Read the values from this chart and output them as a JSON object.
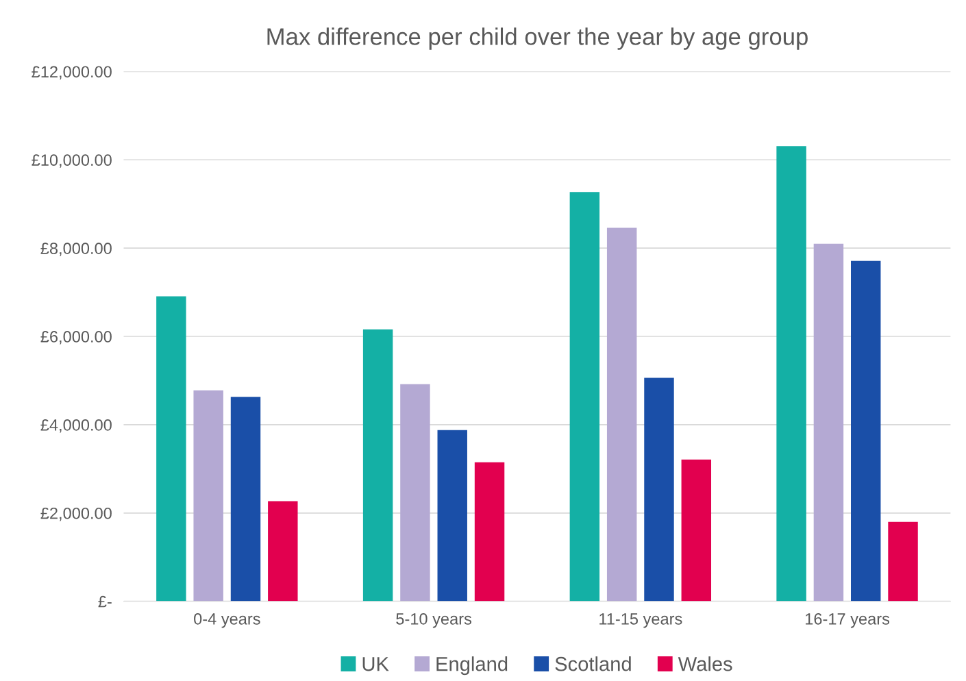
{
  "chart_data": {
    "type": "bar",
    "title": "Max difference per child over the year by age group",
    "categories": [
      "0-4 years",
      "5-10 years",
      "11-15 years",
      "16-17 years"
    ],
    "series": [
      {
        "name": "UK",
        "color": "#14b0a5",
        "values": [
          6910,
          6160,
          9270,
          10310
        ]
      },
      {
        "name": "England",
        "color": "#b4a9d3",
        "values": [
          4780,
          4920,
          8460,
          8100
        ]
      },
      {
        "name": "Scotland",
        "color": "#1a4fa8",
        "values": [
          4630,
          3880,
          5060,
          7710
        ]
      },
      {
        "name": "Wales",
        "color": "#e2004f",
        "values": [
          2270,
          3150,
          3210,
          1800
        ]
      }
    ],
    "ylim": [
      0,
      12000
    ],
    "yticks": [
      {
        "value": 0,
        "label": "£-"
      },
      {
        "value": 2000,
        "label": "£2,000.00"
      },
      {
        "value": 4000,
        "label": "£4,000.00"
      },
      {
        "value": 6000,
        "label": "£6,000.00"
      },
      {
        "value": 8000,
        "label": "£8,000.00"
      },
      {
        "value": 10000,
        "label": "£10,000.00"
      },
      {
        "value": 12000,
        "label": "£12,000.00"
      }
    ],
    "grid": "y",
    "legend": "bottom"
  }
}
